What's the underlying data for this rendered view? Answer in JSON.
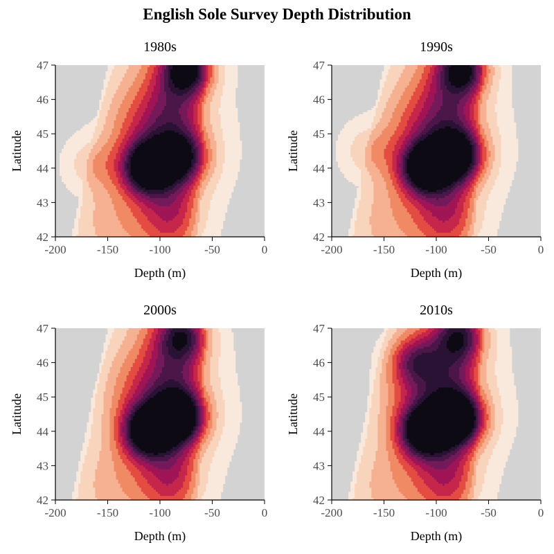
{
  "title": "English Sole Survey Depth Distribution",
  "chart_data": {
    "type": "heatmap",
    "subtype": "filled-contour",
    "colormap": "rocket-reversed",
    "colors": {
      "background": "#d3d3d3",
      "levels": [
        "#f9e8dc",
        "#f8d4bd",
        "#f5b191",
        "#ef8a64",
        "#e44c42",
        "#c5264a",
        "#a01555",
        "#74195a",
        "#4b1749",
        "#2a1235",
        "#0d0a14"
      ]
    },
    "xlabel": "Depth (m)",
    "ylabel": "Latitude",
    "xlim": [
      -200,
      0
    ],
    "ylim": [
      42,
      47
    ],
    "xticks": [
      "-200",
      "-150",
      "-100",
      "-50",
      "0"
    ],
    "yticks": [
      "42",
      "43",
      "44",
      "45",
      "46",
      "47"
    ],
    "grid": false,
    "panels": [
      {
        "title": "1980s",
        "peaks": [
          {
            "depth": -112,
            "lat": 44.0,
            "level": 10
          },
          {
            "depth": -78,
            "lat": 44.3,
            "level": 6
          },
          {
            "depth": -73,
            "lat": 46.9,
            "level": 9
          },
          {
            "depth": -163,
            "lat": 44.1,
            "level": 2
          }
        ]
      },
      {
        "title": "1990s",
        "peaks": [
          {
            "depth": -111,
            "lat": 44.0,
            "level": 10
          },
          {
            "depth": -78,
            "lat": 44.35,
            "level": 8
          },
          {
            "depth": -74,
            "lat": 46.9,
            "level": 8
          },
          {
            "depth": -163,
            "lat": 44.5,
            "level": 2
          }
        ]
      },
      {
        "title": "2000s",
        "peaks": [
          {
            "depth": -112,
            "lat": 44.0,
            "level": 10
          },
          {
            "depth": -80,
            "lat": 44.4,
            "level": 9
          },
          {
            "depth": -78,
            "lat": 46.8,
            "level": 6
          }
        ]
      },
      {
        "title": "2010s",
        "peaks": [
          {
            "depth": -112,
            "lat": 44.0,
            "level": 10
          },
          {
            "depth": -78,
            "lat": 44.35,
            "level": 10
          },
          {
            "depth": -77,
            "lat": 46.8,
            "level": 6
          },
          {
            "depth": -120,
            "lat": 46.05,
            "level": 5
          }
        ]
      }
    ]
  }
}
